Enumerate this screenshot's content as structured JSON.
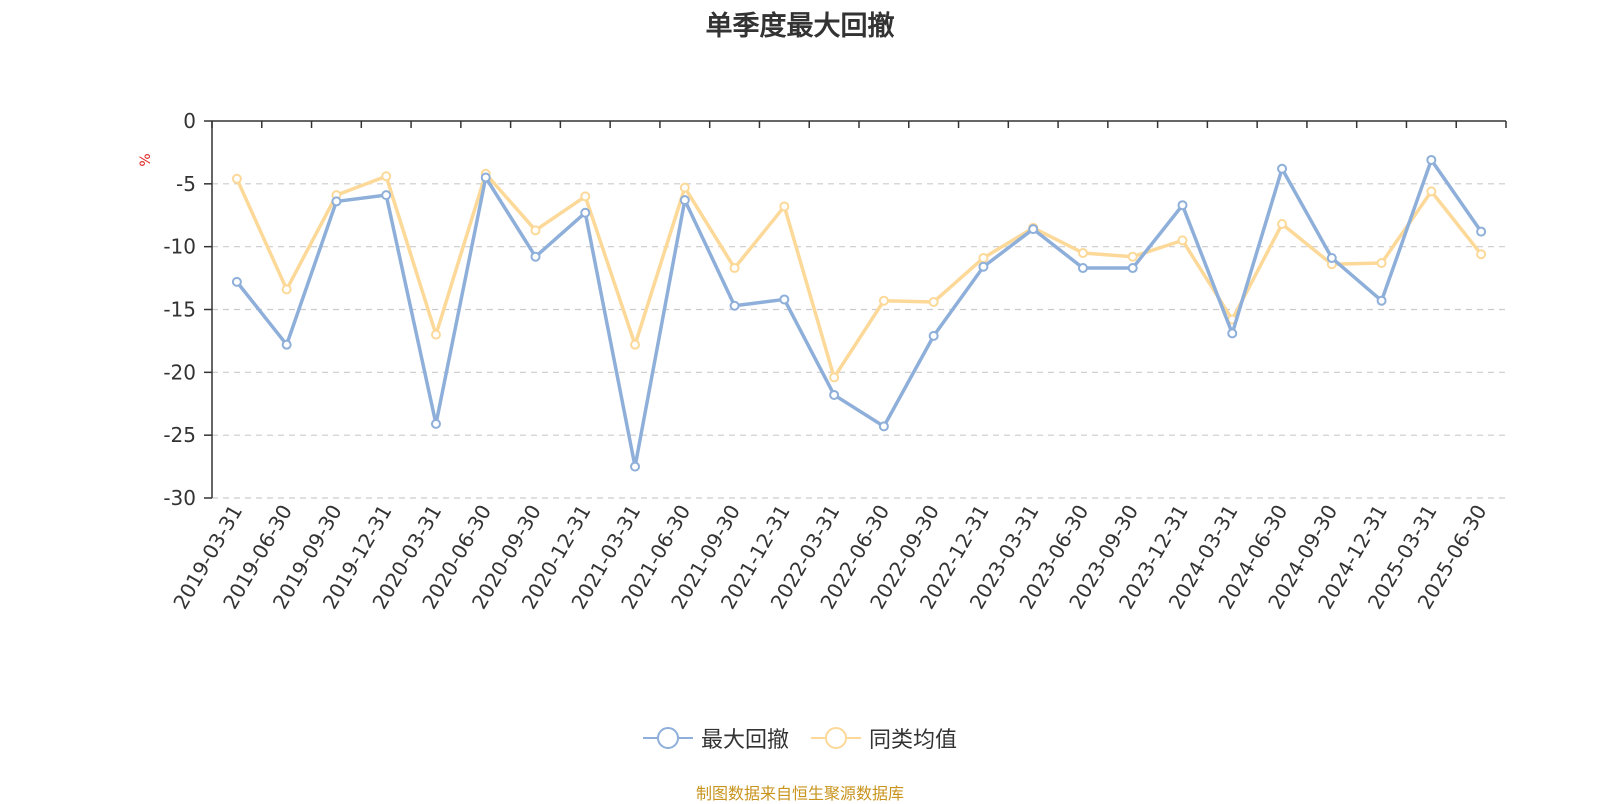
{
  "chart_data": {
    "type": "line",
    "title": "单季度最大回撤",
    "ylabel": "%",
    "ylim": [
      -30,
      0
    ],
    "yticks": [
      0,
      -5,
      -10,
      -15,
      -20,
      -25,
      -30
    ],
    "grid": true,
    "legend_position": "bottom",
    "categories": [
      "2019-03-31",
      "2019-06-30",
      "2019-09-30",
      "2019-12-31",
      "2020-03-31",
      "2020-06-30",
      "2020-09-30",
      "2020-12-31",
      "2021-03-31",
      "2021-06-30",
      "2021-09-30",
      "2021-12-31",
      "2022-03-31",
      "2022-06-30",
      "2022-09-30",
      "2022-12-31",
      "2023-03-31",
      "2023-06-30",
      "2023-09-30",
      "2023-12-31",
      "2024-03-31",
      "2024-06-30",
      "2024-09-30",
      "2024-12-31",
      "2025-03-31",
      "2025-06-30"
    ],
    "series": [
      {
        "name": "最大回撤",
        "color": "#8eafd9",
        "values": [
          -12.8,
          -17.8,
          -6.4,
          -5.9,
          -24.1,
          -4.5,
          -10.8,
          -7.3,
          -27.5,
          -6.3,
          -14.7,
          -14.2,
          -21.8,
          -24.3,
          -17.1,
          -11.6,
          -8.6,
          -11.7,
          -11.7,
          -6.7,
          -16.9,
          -3.8,
          -10.9,
          -14.3,
          -3.1,
          -8.8
        ]
      },
      {
        "name": "同类均值",
        "color": "#fcd999",
        "values": [
          -4.6,
          -13.4,
          -5.9,
          -4.4,
          -17.0,
          -4.2,
          -8.7,
          -6.0,
          -17.8,
          -5.3,
          -11.7,
          -6.8,
          -20.4,
          -14.3,
          -14.4,
          -10.9,
          -8.5,
          -10.5,
          -10.8,
          -9.5,
          -15.8,
          -8.2,
          -11.4,
          -11.3,
          -5.6,
          -10.6
        ]
      }
    ]
  },
  "source_note": "制图数据来自恒生聚源数据库"
}
